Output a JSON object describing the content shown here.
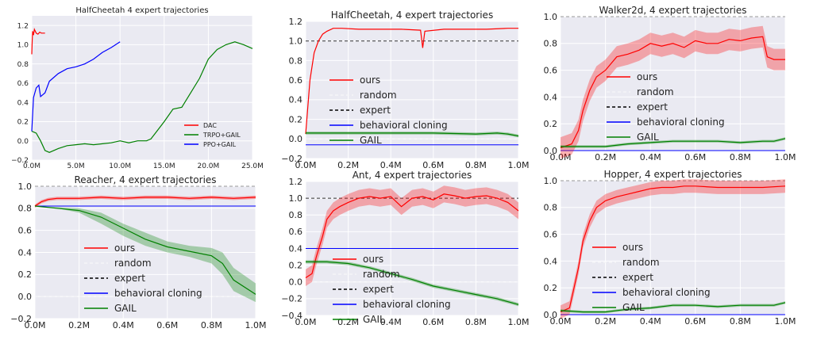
{
  "figure": {
    "background": "#ffffff",
    "plot_bg": "#eaeaf2",
    "grid_color": "#ffffff",
    "colors": {
      "ours": "#ff0000",
      "random": "#ffffff",
      "expert": "#000000",
      "bc": "#0000ff",
      "gail": "#008000",
      "ppo": "#0000ff"
    }
  },
  "chart_data": [
    {
      "type": "line",
      "title": "HalfCheetah 4 expert trajectories",
      "xlabel": "",
      "ylabel": "",
      "xlim": [
        0,
        25
      ],
      "ylim": [
        -0.2,
        1.3
      ],
      "xticks": [
        "0.0M",
        "5.0M",
        "10.0M",
        "15.0M",
        "20.0M",
        "25.0M"
      ],
      "xtick_values": [
        0,
        5,
        10,
        15,
        20,
        25
      ],
      "yticks": [
        "−0.2",
        "0.0",
        "0.2",
        "0.4",
        "0.6",
        "0.8",
        "1.0",
        "1.2"
      ],
      "ytick_values": [
        -0.2,
        0,
        0.2,
        0.4,
        0.6,
        0.8,
        1.0,
        1.2
      ],
      "legend_position": "lower-right",
      "series": [
        {
          "name": "DAC",
          "color": "#ff0000",
          "x": [
            0,
            0.05,
            0.1,
            0.2,
            0.3,
            0.5,
            0.7,
            0.9,
            1.1,
            1.3,
            1.5
          ],
          "y": [
            0.9,
            1.05,
            1.14,
            1.1,
            1.16,
            1.12,
            1.11,
            1.13,
            1.12,
            1.12,
            1.12
          ]
        },
        {
          "name": "TRPO+GAIL",
          "color": "#008000",
          "x": [
            0,
            0.5,
            1,
            1.5,
            2,
            3,
            4,
            5,
            6,
            7,
            8,
            9,
            10,
            11,
            12,
            13,
            13.5,
            14,
            15,
            16,
            17,
            18,
            19,
            20,
            21,
            22,
            23,
            24,
            25
          ],
          "y": [
            0.1,
            0.08,
            0.0,
            -0.1,
            -0.12,
            -0.08,
            -0.05,
            -0.04,
            -0.03,
            -0.04,
            -0.03,
            -0.02,
            0.0,
            -0.02,
            0.0,
            0.0,
            0.02,
            0.08,
            0.2,
            0.33,
            0.35,
            0.5,
            0.65,
            0.85,
            0.95,
            1.0,
            1.03,
            1.0,
            0.96
          ]
        },
        {
          "name": "PPO+GAIL",
          "color": "#0000ff",
          "x": [
            0,
            0.2,
            0.5,
            0.8,
            1,
            1.5,
            2,
            3,
            4,
            5,
            6,
            7,
            8,
            9,
            10
          ],
          "y": [
            0.1,
            0.45,
            0.55,
            0.58,
            0.46,
            0.5,
            0.62,
            0.7,
            0.75,
            0.77,
            0.8,
            0.85,
            0.92,
            0.97,
            1.03
          ]
        }
      ]
    },
    {
      "type": "line",
      "title": "HalfCheetah, 4 expert trajectories",
      "xlabel": "",
      "ylabel": "",
      "xlim": [
        0,
        1
      ],
      "ylim": [
        -0.2,
        1.2
      ],
      "xticks": [
        "0.0M",
        "0.2M",
        "0.4M",
        "0.6M",
        "0.8M",
        "1.0M"
      ],
      "xtick_values": [
        0,
        0.2,
        0.4,
        0.6,
        0.8,
        1.0
      ],
      "yticks": [
        "−0.2",
        "0.0",
        "0.2",
        "0.4",
        "0.6",
        "0.8",
        "1.0",
        "1.2"
      ],
      "ytick_values": [
        -0.2,
        0,
        0.2,
        0.4,
        0.6,
        0.8,
        1.0,
        1.2
      ],
      "legend_position": "center-left",
      "reference_lines": {
        "expert": 1.0,
        "random": 0.0,
        "bc": -0.06
      },
      "series": [
        {
          "name": "ours",
          "color": "#ff0000",
          "x": [
            0,
            0.02,
            0.04,
            0.06,
            0.08,
            0.1,
            0.13,
            0.17,
            0.25,
            0.35,
            0.45,
            0.54,
            0.55,
            0.56,
            0.65,
            0.75,
            0.85,
            0.95,
            1.0
          ],
          "y": [
            0.05,
            0.6,
            0.88,
            1.0,
            1.07,
            1.1,
            1.13,
            1.13,
            1.12,
            1.12,
            1.12,
            1.11,
            0.93,
            1.1,
            1.12,
            1.12,
            1.12,
            1.13,
            1.13
          ]
        },
        {
          "name": "GAIL",
          "color": "#008000",
          "band": 0.015,
          "x": [
            0,
            0.2,
            0.4,
            0.6,
            0.8,
            0.9,
            0.95,
            1.0
          ],
          "y": [
            0.06,
            0.06,
            0.06,
            0.06,
            0.05,
            0.06,
            0.05,
            0.03
          ]
        }
      ],
      "legend": [
        "ours",
        "random",
        "expert",
        "behavioral cloning",
        "GAIL"
      ]
    },
    {
      "type": "line",
      "title": "Walker2d, 4 expert trajectories",
      "xlabel": "",
      "ylabel": "",
      "xlim": [
        0,
        1
      ],
      "ylim": [
        0.0,
        1.0
      ],
      "xticks": [
        "0.0M",
        "0.2M",
        "0.4M",
        "0.6M",
        "0.8M",
        "1.0M"
      ],
      "xtick_values": [
        0,
        0.2,
        0.4,
        0.6,
        0.8,
        1.0
      ],
      "yticks": [
        "0.0",
        "0.2",
        "0.4",
        "0.6",
        "0.8",
        "1.0"
      ],
      "ytick_values": [
        0,
        0.2,
        0.4,
        0.6,
        0.8,
        1.0
      ],
      "legend_position": "center",
      "reference_lines": {
        "expert": 1.0,
        "random": 0.0,
        "bc": 0.0
      },
      "series": [
        {
          "name": "ours",
          "color": "#ff0000",
          "band": 0.08,
          "x": [
            0,
            0.05,
            0.08,
            0.1,
            0.13,
            0.16,
            0.2,
            0.25,
            0.3,
            0.35,
            0.4,
            0.45,
            0.5,
            0.55,
            0.6,
            0.65,
            0.7,
            0.75,
            0.8,
            0.85,
            0.9,
            0.92,
            0.95,
            1.0
          ],
          "y": [
            0.02,
            0.05,
            0.15,
            0.3,
            0.45,
            0.55,
            0.6,
            0.7,
            0.72,
            0.75,
            0.8,
            0.78,
            0.8,
            0.77,
            0.82,
            0.8,
            0.8,
            0.83,
            0.82,
            0.84,
            0.85,
            0.7,
            0.68,
            0.68
          ]
        },
        {
          "name": "GAIL",
          "color": "#008000",
          "band": 0.01,
          "x": [
            0,
            0.1,
            0.2,
            0.3,
            0.4,
            0.5,
            0.6,
            0.7,
            0.8,
            0.9,
            0.95,
            1.0
          ],
          "y": [
            0.03,
            0.03,
            0.03,
            0.05,
            0.06,
            0.07,
            0.07,
            0.07,
            0.06,
            0.07,
            0.07,
            0.09
          ]
        }
      ],
      "legend": [
        "ours",
        "random",
        "expert",
        "behavioral cloning",
        "GAIL"
      ]
    },
    {
      "type": "line",
      "title": "Reacher, 4 expert trajectories",
      "xlabel": "",
      "ylabel": "",
      "xlim": [
        0,
        1
      ],
      "ylim": [
        -0.2,
        1.0
      ],
      "xticks": [
        "0.0M",
        "0.2M",
        "0.4M",
        "0.6M",
        "0.8M",
        "1.0M"
      ],
      "xtick_values": [
        0,
        0.2,
        0.4,
        0.6,
        0.8,
        1.0
      ],
      "yticks": [
        "−0.2",
        "0.0",
        "0.2",
        "0.4",
        "0.6",
        "0.8",
        "1.0"
      ],
      "ytick_values": [
        -0.2,
        0,
        0.2,
        0.4,
        0.6,
        0.8,
        1.0
      ],
      "legend_position": "lower-center",
      "reference_lines": {
        "expert": 1.0,
        "random": 0.0,
        "bc": 0.82
      },
      "series": [
        {
          "name": "ours",
          "color": "#ff0000",
          "band": 0.015,
          "x": [
            0,
            0.03,
            0.06,
            0.1,
            0.2,
            0.3,
            0.4,
            0.5,
            0.6,
            0.7,
            0.8,
            0.9,
            1.0
          ],
          "y": [
            0.82,
            0.86,
            0.88,
            0.89,
            0.89,
            0.9,
            0.89,
            0.9,
            0.9,
            0.89,
            0.9,
            0.89,
            0.9
          ]
        },
        {
          "name": "GAIL",
          "color": "#008000",
          "band_lower": [
            0.82,
            0.8,
            0.76,
            0.66,
            0.55,
            0.46,
            0.4,
            0.36,
            0.3,
            0.2,
            0.05,
            -0.05
          ],
          "band_upper": [
            0.82,
            0.81,
            0.8,
            0.76,
            0.66,
            0.58,
            0.5,
            0.46,
            0.44,
            0.4,
            0.26,
            0.12
          ],
          "x": [
            0,
            0.1,
            0.2,
            0.3,
            0.4,
            0.5,
            0.6,
            0.7,
            0.8,
            0.85,
            0.9,
            1.0
          ],
          "y": [
            0.82,
            0.8,
            0.78,
            0.72,
            0.62,
            0.52,
            0.45,
            0.41,
            0.37,
            0.3,
            0.15,
            0.02
          ]
        }
      ],
      "legend": [
        "ours",
        "random",
        "expert",
        "behavioral cloning",
        "GAIL"
      ]
    },
    {
      "type": "line",
      "title": "Ant, 4 expert trajectories",
      "xlabel": "",
      "ylabel": "",
      "xlim": [
        0,
        1
      ],
      "ylim": [
        -0.4,
        1.2
      ],
      "xticks": [
        "0.0M",
        "0.2M",
        "0.4M",
        "0.6M",
        "0.8M",
        "1.0M"
      ],
      "xtick_values": [
        0,
        0.2,
        0.4,
        0.6,
        0.8,
        1.0
      ],
      "yticks": [
        "−0.4",
        "−0.2",
        "0.0",
        "0.2",
        "0.4",
        "0.6",
        "0.8",
        "1.0",
        "1.2"
      ],
      "ytick_values": [
        -0.4,
        -0.2,
        0,
        0.2,
        0.4,
        0.6,
        0.8,
        1.0,
        1.2
      ],
      "legend_position": "lower-center",
      "reference_lines": {
        "expert": 1.0,
        "random": 0.0,
        "bc": 0.4
      },
      "series": [
        {
          "name": "ours",
          "color": "#ff0000",
          "band": 0.1,
          "x": [
            0,
            0.03,
            0.05,
            0.08,
            0.1,
            0.13,
            0.16,
            0.2,
            0.25,
            0.3,
            0.35,
            0.4,
            0.45,
            0.5,
            0.55,
            0.6,
            0.65,
            0.7,
            0.75,
            0.8,
            0.85,
            0.9,
            0.95,
            1.0
          ],
          "y": [
            0.05,
            0.1,
            0.3,
            0.55,
            0.75,
            0.85,
            0.9,
            0.95,
            1.0,
            1.02,
            1.0,
            1.02,
            0.9,
            1.0,
            1.02,
            0.98,
            1.05,
            1.03,
            1.0,
            1.02,
            1.03,
            1.0,
            0.95,
            0.85
          ]
        },
        {
          "name": "GAIL",
          "color": "#008000",
          "band": 0.02,
          "x": [
            0,
            0.1,
            0.2,
            0.3,
            0.4,
            0.5,
            0.6,
            0.7,
            0.8,
            0.9,
            1.0
          ],
          "y": [
            0.24,
            0.24,
            0.22,
            0.17,
            0.1,
            0.03,
            -0.05,
            -0.1,
            -0.15,
            -0.2,
            -0.27
          ]
        }
      ],
      "legend": [
        "ours",
        "random",
        "expert",
        "behavioral cloning",
        "GAIL"
      ]
    },
    {
      "type": "line",
      "title": "Hopper, 4 expert trajectories",
      "xlabel": "",
      "ylabel": "",
      "xlim": [
        0,
        1
      ],
      "ylim": [
        0.0,
        1.0
      ],
      "xticks": [
        "0.0M",
        "0.2M",
        "0.4M",
        "0.6M",
        "0.8M",
        "1.0M"
      ],
      "xtick_values": [
        0,
        0.2,
        0.4,
        0.6,
        0.8,
        1.0
      ],
      "yticks": [
        "0.0",
        "0.2",
        "0.4",
        "0.6",
        "0.8",
        "1.0"
      ],
      "ytick_values": [
        0,
        0.2,
        0.4,
        0.6,
        0.8,
        1.0
      ],
      "legend_position": "lower-center",
      "reference_lines": {
        "expert": 1.0,
        "random": 0.0,
        "bc": 0.0
      },
      "series": [
        {
          "name": "ours",
          "color": "#ff0000",
          "band": 0.05,
          "x": [
            0,
            0.04,
            0.06,
            0.08,
            0.1,
            0.13,
            0.16,
            0.2,
            0.25,
            0.3,
            0.35,
            0.4,
            0.45,
            0.5,
            0.55,
            0.6,
            0.7,
            0.8,
            0.9,
            1.0
          ],
          "y": [
            0.02,
            0.05,
            0.2,
            0.35,
            0.55,
            0.7,
            0.8,
            0.85,
            0.88,
            0.9,
            0.92,
            0.94,
            0.95,
            0.95,
            0.96,
            0.96,
            0.95,
            0.95,
            0.95,
            0.96
          ]
        },
        {
          "name": "GAIL",
          "color": "#008000",
          "band": 0.01,
          "x": [
            0,
            0.1,
            0.2,
            0.3,
            0.4,
            0.5,
            0.6,
            0.7,
            0.8,
            0.9,
            0.95,
            1.0
          ],
          "y": [
            0.03,
            0.02,
            0.02,
            0.04,
            0.05,
            0.07,
            0.07,
            0.06,
            0.07,
            0.07,
            0.07,
            0.09
          ]
        }
      ],
      "legend": [
        "ours",
        "random",
        "expert",
        "behavioral cloning",
        "GAIL"
      ]
    }
  ]
}
